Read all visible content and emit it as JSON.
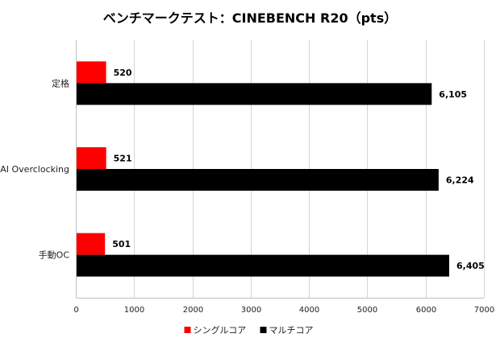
{
  "chart_data": {
    "type": "bar",
    "orientation": "horizontal",
    "title": "ベンチマークテスト：CINEBENCH R20（pts）",
    "categories": [
      "定格",
      "AI Overclocking",
      "手動OC"
    ],
    "series": [
      {
        "name": "シングルコア",
        "color": "#ff0000",
        "values": [
          520,
          521,
          501
        ],
        "labels": [
          "520",
          "521",
          "501"
        ]
      },
      {
        "name": "マルチコア",
        "color": "#000000",
        "values": [
          6105,
          6224,
          6405
        ],
        "labels": [
          "6,105",
          "6,224",
          "6,405"
        ]
      }
    ],
    "xlim": [
      0,
      7000
    ],
    "xticks": [
      "0",
      "1000",
      "2000",
      "3000",
      "4000",
      "5000",
      "6000",
      "7000"
    ],
    "grid": true,
    "legend": "bottom"
  }
}
